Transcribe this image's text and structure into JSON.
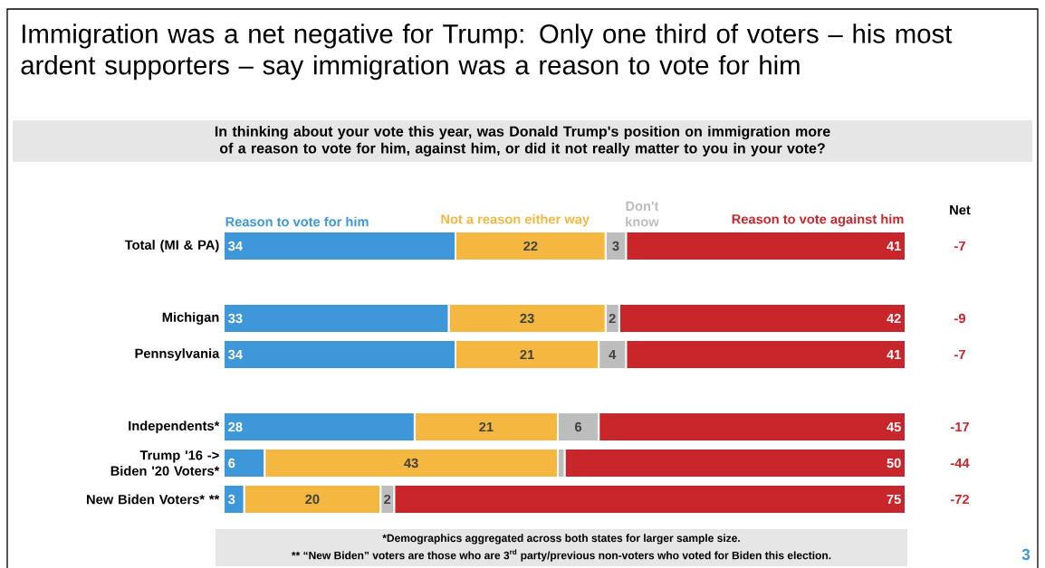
{
  "chart_data": [
    {
      "type": "bar",
      "orientation": "horizontal",
      "stacked": true,
      "title": "Immigration was a net negative for Trump: Only one third of voters – his most ardent supporters – say immigration was a reason to vote for him",
      "subtitle": "In thinking about your vote this year, was Donald Trump's position on immigration more of a reason to vote for him, against him, or did it not really matter to you in your vote?",
      "annotations": [
        "*Demographics aggregated across both states for larger sample size.",
        "** “New Biden” voters are those who are 3$^{rd}$ party/previous non-voters who voted for Biden this election.",
        "3"
      ],
      "categories": [
        "Total (MI & PA)",
        null,
        "Michigan",
        "Pennsylvania",
        null,
        "Independents*",
        "Trump '16 -> Biden '20 Voters*",
        "New Biden Voters* **"
      ],
      "series": [
        {
          "name": "Reason to vote for him",
          "color": "#3d97d9",
          "values": [
            34,
            null,
            33,
            34,
            null,
            28,
            6,
            3
          ],
          "value_labels": [
            "34",
            null,
            "33",
            "34",
            null,
            "28",
            "6",
            "3"
          ]
        },
        {
          "name": "Not a reason either way",
          "color": "#f4b73f",
          "values": [
            22,
            null,
            23,
            21,
            null,
            21,
            43,
            20
          ],
          "value_labels": [
            "22",
            null,
            "23",
            "21",
            null,
            "21",
            "43",
            "20"
          ]
        },
        {
          "name": "Don't know",
          "color": "#bdbdbd",
          "values": [
            3,
            null,
            2,
            4,
            null,
            6,
            1,
            2
          ],
          "value_labels": [
            "3",
            null,
            "2",
            "4",
            null,
            "6",
            null,
            "2"
          ]
        },
        {
          "name": "Reason to vote against him",
          "color": "#c8262b",
          "values": [
            41,
            null,
            42,
            41,
            null,
            45,
            50,
            75
          ],
          "value_labels": [
            "41",
            null,
            "42",
            "41",
            null,
            "45",
            "50",
            "75"
          ]
        }
      ]
    },
    {
      "type": "other",
      "title": "Net",
      "color": "#c8262b",
      "value_labels": [
        "-7",
        null,
        "-9",
        "-7",
        null,
        "-17",
        "-44",
        "-72"
      ]
    }
  ]
}
